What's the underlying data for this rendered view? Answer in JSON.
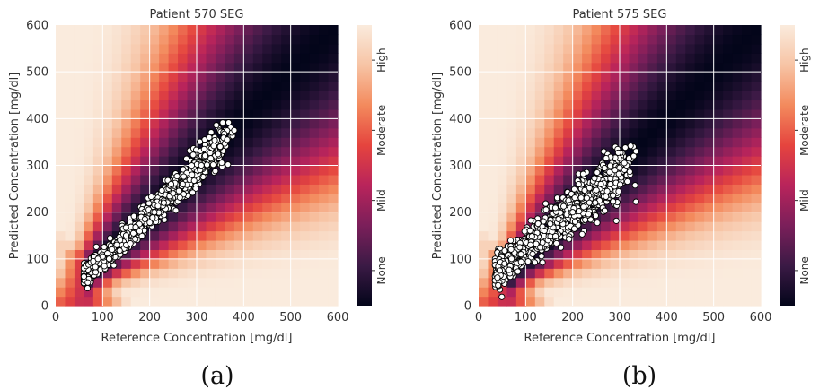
{
  "figure": {
    "captions": [
      "(a)",
      "(b)"
    ]
  },
  "colors": {
    "map": [
      "#03051a",
      "#3b1a45",
      "#7b1f5a",
      "#b9245b",
      "#e5443e",
      "#f38a5d",
      "#f7c4a5",
      "#faebdd"
    ],
    "point_fill": "#ffffff",
    "point_stroke": "#000000",
    "grid": "#ffffff"
  },
  "chart_data": [
    {
      "type": "scatter",
      "title": "Patient 570 SEG",
      "xlabel": "Reference Concentration [mg/dl]",
      "ylabel": "Predicted Concentration [mg/dl]",
      "xlim": [
        0,
        600
      ],
      "ylim": [
        0,
        600
      ],
      "xticks": [
        0,
        100,
        200,
        300,
        400,
        500,
        600
      ],
      "yticks": [
        0,
        100,
        200,
        300,
        400,
        500,
        600
      ],
      "grid": true,
      "background": "surveillance error grid heatmap",
      "colorbar": {
        "labels": [
          "None",
          "Mild",
          "Moderate",
          "High"
        ]
      },
      "point_cloud": {
        "x_range": [
          60,
          380
        ],
        "slope": 0.95,
        "intercept": 5,
        "spread_sd": 18,
        "count": 900
      },
      "series": [
        {
          "x": [
            60,
            65,
            70,
            75,
            80,
            90,
            100,
            110,
            120,
            130,
            150,
            170,
            190,
            210,
            230,
            250,
            270,
            290,
            310,
            330,
            350,
            365,
            375,
            380
          ],
          "y": [
            80,
            85,
            88,
            92,
            95,
            100,
            105,
            112,
            120,
            130,
            150,
            168,
            185,
            200,
            220,
            240,
            260,
            280,
            300,
            315,
            340,
            355,
            370,
            375
          ]
        }
      ]
    },
    {
      "type": "scatter",
      "title": "Patient 575 SEG",
      "xlabel": "Reference Concentration [mg/dl]",
      "ylabel": "Predicted Concentration [mg/dl]",
      "xlim": [
        0,
        600
      ],
      "ylim": [
        0,
        600
      ],
      "xticks": [
        0,
        100,
        200,
        300,
        400,
        500,
        600
      ],
      "yticks": [
        0,
        100,
        200,
        300,
        400,
        500,
        600
      ],
      "grid": true,
      "background": "surveillance error grid heatmap",
      "colorbar": {
        "labels": [
          "None",
          "Mild",
          "Moderate",
          "High"
        ]
      },
      "point_cloud": {
        "x_range": [
          35,
          335
        ],
        "slope": 0.82,
        "intercept": 40,
        "spread_sd": 28,
        "count": 900
      },
      "series": [
        {
          "x": [
            40,
            45,
            55,
            70,
            90,
            110,
            140,
            170,
            200,
            230,
            260,
            290,
            300,
            310,
            320,
            330,
            335
          ],
          "y": [
            60,
            75,
            90,
            100,
            110,
            130,
            160,
            185,
            200,
            230,
            260,
            290,
            295,
            305,
            315,
            320,
            330
          ]
        }
      ]
    }
  ]
}
